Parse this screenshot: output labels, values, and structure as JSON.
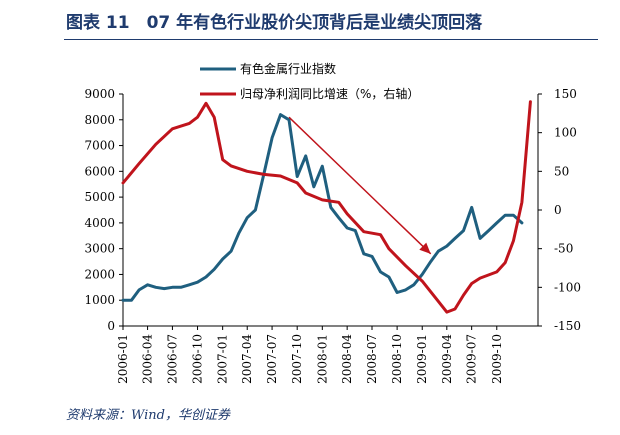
{
  "header": {
    "title": "图表 11　07 年有色行业股价尖顶背后是业绩尖顶回落"
  },
  "footer": {
    "source": "资料来源：Wind，华创证券"
  },
  "chart_data": {
    "type": "line",
    "x_ticks": [
      "2006-01",
      "2006-04",
      "2006-07",
      "2006-10",
      "2007-01",
      "2007-04",
      "2007-07",
      "2007-10",
      "2008-01",
      "2008-04",
      "2008-07",
      "2008-10",
      "2009-01",
      "2009-04",
      "2009-07",
      "2009-10"
    ],
    "y_left": {
      "min": 0,
      "max": 9000,
      "ticks": [
        "0",
        "1000",
        "2000",
        "3000",
        "4000",
        "5000",
        "6000",
        "7000",
        "8000",
        "9000"
      ]
    },
    "y_right": {
      "min": -150,
      "max": 150,
      "ticks": [
        "-150",
        "-100",
        "-50",
        "0",
        "50",
        "100",
        "150"
      ]
    },
    "colors": {
      "series1": "#1f5f7f",
      "series2": "#c0141c",
      "arrow": "#c0141c"
    },
    "series": [
      {
        "name": "有色金属行业指数",
        "axis": "left",
        "points": [
          [
            "2006-01-01",
            1000
          ],
          [
            "2006-02-01",
            1000
          ],
          [
            "2006-03-01",
            1400
          ],
          [
            "2006-04-01",
            1600
          ],
          [
            "2006-05-01",
            1500
          ],
          [
            "2006-06-01",
            1450
          ],
          [
            "2006-07-01",
            1500
          ],
          [
            "2006-08-01",
            1500
          ],
          [
            "2006-09-01",
            1600
          ],
          [
            "2006-10-01",
            1700
          ],
          [
            "2006-11-01",
            1900
          ],
          [
            "2006-12-01",
            2200
          ],
          [
            "2007-01-01",
            2600
          ],
          [
            "2007-02-01",
            2900
          ],
          [
            "2007-03-01",
            3600
          ],
          [
            "2007-04-01",
            4200
          ],
          [
            "2007-05-01",
            4500
          ],
          [
            "2007-06-01",
            5900
          ],
          [
            "2007-07-01",
            7300
          ],
          [
            "2007-08-01",
            8200
          ],
          [
            "2007-09-01",
            8000
          ],
          [
            "2007-10-01",
            5800
          ],
          [
            "2007-11-01",
            6600
          ],
          [
            "2007-12-01",
            5400
          ],
          [
            "2008-01-01",
            6200
          ],
          [
            "2008-02-01",
            4600
          ],
          [
            "2008-03-01",
            4200
          ],
          [
            "2008-04-01",
            3800
          ],
          [
            "2008-05-01",
            3700
          ],
          [
            "2008-06-01",
            2800
          ],
          [
            "2008-07-01",
            2700
          ],
          [
            "2008-08-01",
            2100
          ],
          [
            "2008-09-01",
            1900
          ],
          [
            "2008-10-01",
            1300
          ],
          [
            "2008-11-01",
            1400
          ],
          [
            "2008-12-01",
            1600
          ],
          [
            "2009-01-01",
            2000
          ],
          [
            "2009-02-01",
            2500
          ],
          [
            "2009-03-01",
            2900
          ],
          [
            "2009-04-01",
            3100
          ],
          [
            "2009-05-01",
            3400
          ],
          [
            "2009-06-01",
            3700
          ],
          [
            "2009-07-01",
            4600
          ],
          [
            "2009-08-01",
            3400
          ],
          [
            "2009-09-01",
            3700
          ],
          [
            "2009-10-01",
            4000
          ],
          [
            "2009-11-01",
            4300
          ],
          [
            "2009-12-01",
            4300
          ],
          [
            "2010-01-01",
            4000
          ]
        ]
      },
      {
        "name": "归母净利润同比增速（%，右轴）",
        "axis": "right",
        "points": [
          [
            "2006-01-01",
            35
          ],
          [
            "2006-03-01",
            60
          ],
          [
            "2006-05-01",
            85
          ],
          [
            "2006-07-01",
            105
          ],
          [
            "2006-09-01",
            112
          ],
          [
            "2006-10-01",
            120
          ],
          [
            "2006-11-01",
            138
          ],
          [
            "2006-12-01",
            120
          ],
          [
            "2007-01-01",
            65
          ],
          [
            "2007-02-01",
            57
          ],
          [
            "2007-04-01",
            50
          ],
          [
            "2007-06-01",
            46
          ],
          [
            "2007-08-01",
            44
          ],
          [
            "2007-10-01",
            35
          ],
          [
            "2007-11-01",
            22
          ],
          [
            "2008-01-01",
            13
          ],
          [
            "2008-03-01",
            10
          ],
          [
            "2008-04-01",
            -5
          ],
          [
            "2008-06-01",
            -28
          ],
          [
            "2008-08-01",
            -32
          ],
          [
            "2008-09-01",
            -50
          ],
          [
            "2008-11-01",
            -72
          ],
          [
            "2009-01-01",
            -92
          ],
          [
            "2009-03-01",
            -118
          ],
          [
            "2009-04-01",
            -132
          ],
          [
            "2009-05-01",
            -128
          ],
          [
            "2009-06-01",
            -110
          ],
          [
            "2009-07-01",
            -95
          ],
          [
            "2009-08-01",
            -88
          ],
          [
            "2009-10-01",
            -80
          ],
          [
            "2009-11-01",
            -68
          ],
          [
            "2009-12-01",
            -40
          ],
          [
            "2010-01-01",
            10
          ],
          [
            "2010-02-01",
            140
          ]
        ]
      }
    ],
    "annotation": {
      "type": "arrow",
      "from": [
        "2007-09-01",
        8100
      ],
      "to": [
        "2009-02-01",
        2800
      ]
    },
    "legend": "top",
    "grid": false
  }
}
